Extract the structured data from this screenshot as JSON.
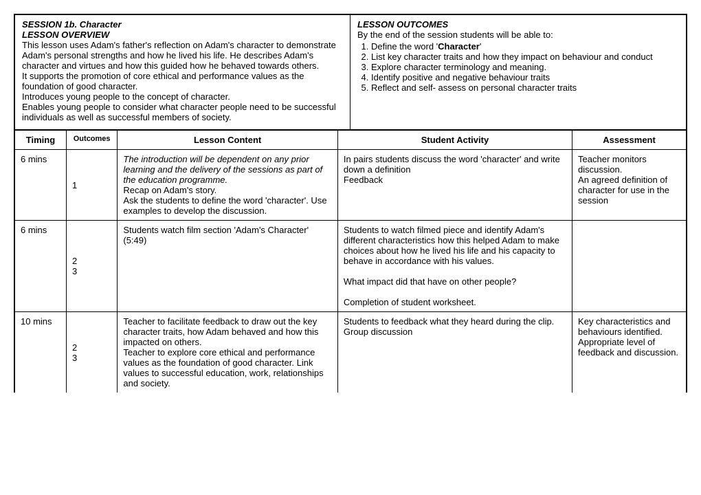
{
  "header": {
    "session_title": "SESSION 1b. Character",
    "overview_label": "LESSON OVERVIEW",
    "overview_text": "This lesson uses Adam's father's reflection on Adam's character to demonstrate Adam's personal strengths and how he lived his life. He describes Adam's character and virtues and how this guided how he behaved towards others.\nIt supports the promotion of core ethical and performance values as the foundation of good character.\nIntroduces young people to the concept of character.\nEnables young people to consider what character people need to be successful individuals as well as successful members of society.",
    "outcomes_label": "LESSON OUTCOMES",
    "outcomes_intro": "By the end of the session students will be able to:",
    "outcomes": [
      {
        "pre": "Define the word '",
        "bold": "Character",
        "post": "'"
      },
      {
        "pre": "List key character traits and how they impact on behaviour and conduct",
        "bold": "",
        "post": ""
      },
      {
        "pre": "Explore character terminology and meaning.",
        "bold": "",
        "post": ""
      },
      {
        "pre": "Identify positive and negative behaviour traits",
        "bold": "",
        "post": ""
      },
      {
        "pre": "Reflect and self- assess on personal character traits",
        "bold": "",
        "post": ""
      }
    ]
  },
  "columns": {
    "timing": "Timing",
    "outcomes": "Outcomes",
    "content": "Lesson Content",
    "activity": "Student Activity",
    "assessment": "Assessment"
  },
  "rows": [
    {
      "timing": "6 mins",
      "outcomes": "1",
      "content_italic": "The introduction will be dependent on any prior learning and the delivery of the sessions as part of the education programme.",
      "content_rest": "Recap on Adam's story.\nAsk the students to define the word 'character'. Use examples to develop the discussion.",
      "activity": "In pairs students discuss the word 'character' and write down a definition\nFeedback",
      "assessment": "Teacher monitors discussion.\nAn agreed definition of character for use in the session"
    },
    {
      "timing": "6 mins",
      "outcomes": "2\n3",
      "content_italic": "",
      "content_rest": "Students watch film section 'Adam's Character' (5:49)",
      "activity": "Students to watch filmed piece and identify Adam's different characteristics how this helped Adam to make choices about how he lived his life and his capacity to behave in accordance with his values.\n\nWhat impact did that have on other people?\n\nCompletion of student worksheet.",
      "assessment": ""
    },
    {
      "timing": "10 mins",
      "outcomes": "2\n3",
      "content_italic": "",
      "content_rest": "Teacher to facilitate feedback to draw out the key character traits, how Adam behaved and how this impacted on others.\nTeacher to explore core ethical and performance values as the foundation of good character. Link values to successful education, work, relationships and society.",
      "activity": "Students to feedback what they heard during the clip.\nGroup discussion",
      "assessment": "Key characteristics and behaviours identified.\nAppropriate level of feedback and discussion."
    }
  ]
}
